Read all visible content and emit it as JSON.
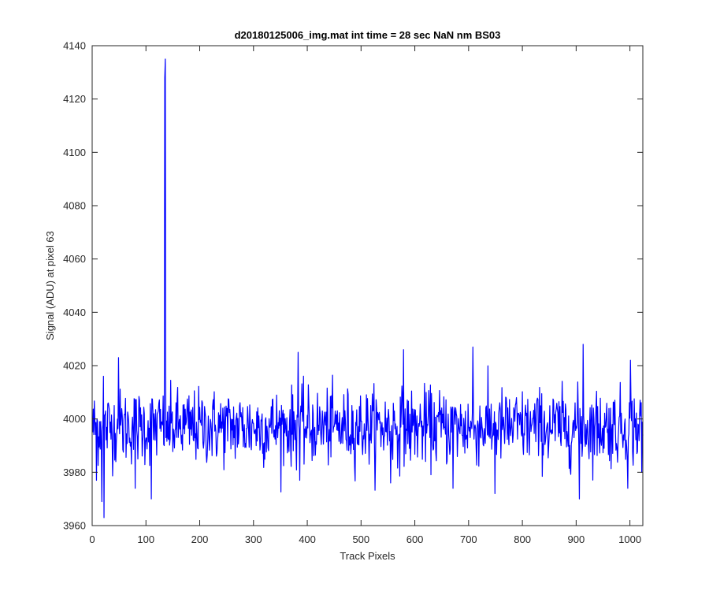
{
  "chart_data": {
    "type": "line",
    "title": "d20180125006_img.mat int time = 28 sec  NaN nm BS03",
    "xlabel": "Track Pixels",
    "ylabel": "Signal (ADU) at pixel 63",
    "xlim": [
      0,
      1024
    ],
    "ylim": [
      3960,
      4140
    ],
    "xticks": [
      0,
      100,
      200,
      300,
      400,
      500,
      600,
      700,
      800,
      900,
      1000
    ],
    "yticks": [
      3960,
      3980,
      4000,
      4020,
      4040,
      4060,
      4080,
      4100,
      4120,
      4140
    ],
    "grid": false,
    "box": true,
    "series": [
      {
        "color": "#0000ff",
        "description": "approximately 1024 noisy samples around 3997 ADU (spread about 3965 to 4028) with a single spike of 4135 near pixel 136",
        "baseline": 3997,
        "noise_std": 7,
        "n_points": 1024,
        "anchor_points": [
          {
            "x": 1,
            "y": 3995
          },
          {
            "x": 8,
            "y": 3977
          },
          {
            "x": 18,
            "y": 3969
          },
          {
            "x": 21,
            "y": 4016
          },
          {
            "x": 22,
            "y": 3963
          },
          {
            "x": 49,
            "y": 4023
          },
          {
            "x": 80,
            "y": 3974
          },
          {
            "x": 110,
            "y": 3970
          },
          {
            "x": 134,
            "y": 3990
          },
          {
            "x": 135,
            "y": 4128
          },
          {
            "x": 136,
            "y": 4135
          },
          {
            "x": 137,
            "y": 3993
          },
          {
            "x": 383,
            "y": 4025
          },
          {
            "x": 386,
            "y": 3977
          },
          {
            "x": 579,
            "y": 4026
          },
          {
            "x": 555,
            "y": 3976
          },
          {
            "x": 671,
            "y": 3974
          },
          {
            "x": 708,
            "y": 4027
          },
          {
            "x": 749,
            "y": 3972
          },
          {
            "x": 906,
            "y": 3970
          },
          {
            "x": 913,
            "y": 4028
          },
          {
            "x": 996,
            "y": 3974
          },
          {
            "x": 1001,
            "y": 4022
          },
          {
            "x": 1022,
            "y": 3980
          }
        ]
      }
    ]
  }
}
